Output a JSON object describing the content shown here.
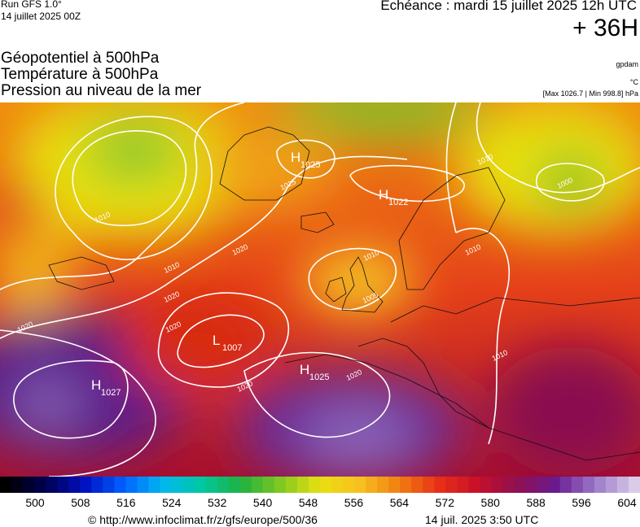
{
  "header": {
    "run": "Run GFS 1.0°",
    "date": "14 juillet 2025 00Z",
    "echeance": "Echéance : mardi 15 juillet 2025 12h UTC",
    "lead": "+ 36H"
  },
  "titles": [
    "Géopotentiel à 500hPa",
    "Température à 500hPa",
    "Pression au niveau de la mer"
  ],
  "units": [
    "gpdam",
    "°C"
  ],
  "range": "[Max 1026.7 | Min 998.8] hPa",
  "centers": [
    {
      "symbol": "H",
      "value": "1025"
    },
    {
      "symbol": "H",
      "value": "1022"
    },
    {
      "symbol": "L",
      "value": "1007"
    },
    {
      "symbol": "H",
      "value": "1027"
    },
    {
      "symbol": "H",
      "value": "1025"
    }
  ],
  "isobar_labels": [
    "1025",
    "1010",
    "1010",
    "1020",
    "1020",
    "1020",
    "1020",
    "1020",
    "1020",
    "1010",
    "1000",
    "1010",
    "1010",
    "1010",
    "1005"
  ],
  "colorbar": {
    "ticks": [
      500,
      508,
      516,
      524,
      532,
      540,
      548,
      556,
      564,
      572,
      580,
      588,
      596,
      604
    ]
  },
  "footer": {
    "url": "© http://www.infoclimat.fr/z/gfs/europe/500/36",
    "timestamp": "14 juil. 2025  3:50 UTC"
  }
}
